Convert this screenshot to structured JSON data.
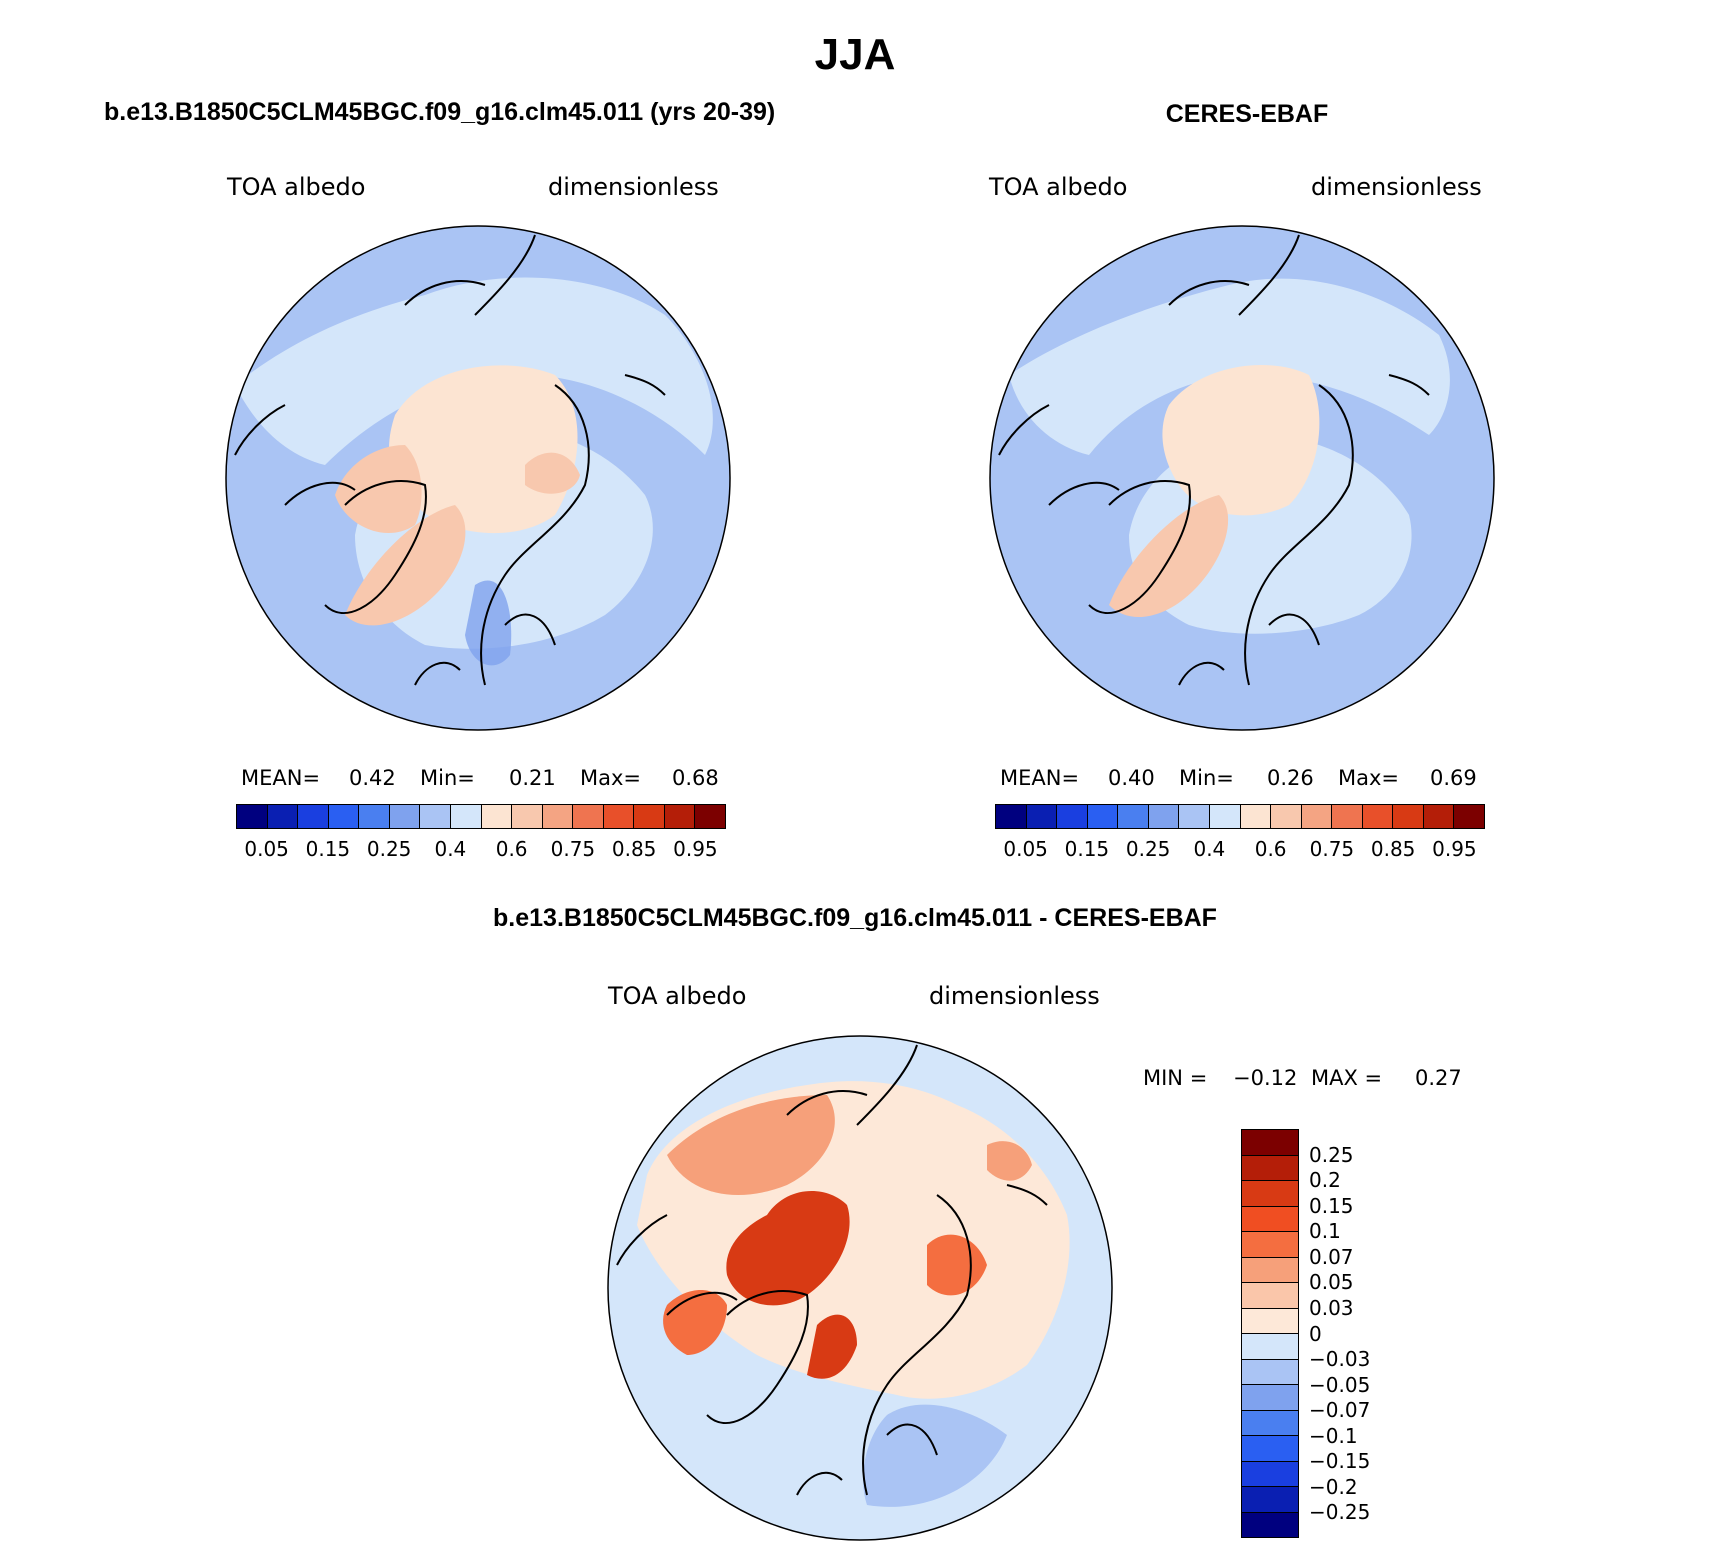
{
  "title": "JJA",
  "panels": [
    {
      "id": "model",
      "heading": "b.e13.B1850C5CLM45BGC.f09_g16.clm45.011 (yrs 20-39)",
      "left_label": "TOA albedo",
      "right_label": "dimensionless",
      "stats": {
        "mean_label": "MEAN=",
        "mean": "0.42",
        "min_label": "Min=",
        "min": "0.21",
        "max_label": "Max=",
        "max": "0.68"
      },
      "colorbar_ticks": [
        "0.05",
        "0.15",
        "0.25",
        "0.4",
        "0.6",
        "0.75",
        "0.85",
        "0.95"
      ]
    },
    {
      "id": "obs",
      "heading": "CERES-EBAF",
      "left_label": "TOA albedo",
      "right_label": "dimensionless",
      "stats": {
        "mean_label": "MEAN=",
        "mean": "0.40",
        "min_label": "Min=",
        "min": "0.26",
        "max_label": "Max=",
        "max": "0.69"
      },
      "colorbar_ticks": [
        "0.05",
        "0.15",
        "0.25",
        "0.4",
        "0.6",
        "0.75",
        "0.85",
        "0.95"
      ]
    },
    {
      "id": "diff",
      "heading": "b.e13.B1850C5CLM45BGC.f09_g16.clm45.011 - CERES-EBAF",
      "left_label": "TOA albedo",
      "right_label": "dimensionless",
      "stats": {
        "min_label": "MIN =",
        "min": "−0.12",
        "max_label": "MAX =",
        "max": "0.27"
      },
      "colorbar_ticks": [
        "0.25",
        "0.2",
        "0.15",
        "0.1",
        "0.07",
        "0.05",
        "0.03",
        "0",
        "−0.03",
        "−0.05",
        "−0.07",
        "−0.1",
        "−0.15",
        "−0.2",
        "−0.25"
      ]
    }
  ],
  "palette_absolute": [
    "#00007f",
    "#0a1fb2",
    "#1a3fe0",
    "#2a5ff2",
    "#4a7ff0",
    "#7fa2ee",
    "#aac4f4",
    "#d4e6fa",
    "#fce4d2",
    "#f8c8ae",
    "#f4a483",
    "#ef7450",
    "#e8502a",
    "#d83a14",
    "#b41e08",
    "#7c0000"
  ],
  "palette_difference": [
    "#7c0000",
    "#b41e08",
    "#d83a14",
    "#f04e22",
    "#f46e40",
    "#f6a07a",
    "#fac6aa",
    "#fde8d8",
    "#d4e6fa",
    "#aac4f4",
    "#7fa2ee",
    "#4a7ff0",
    "#2a5ff2",
    "#1a3fe0",
    "#0a1fb2",
    "#00007f"
  ]
}
